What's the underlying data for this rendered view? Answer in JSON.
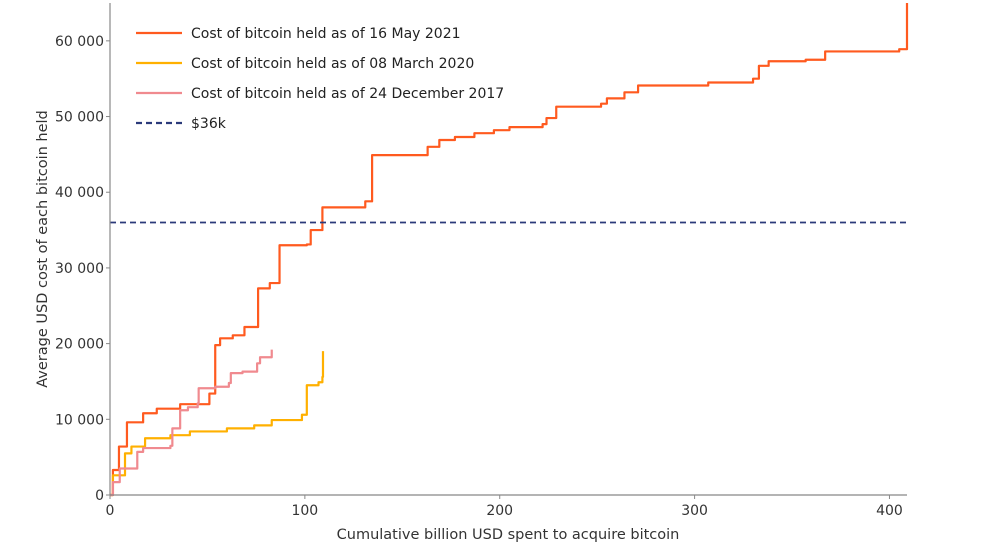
{
  "chart_data": {
    "type": "line",
    "title": "",
    "xlabel": "Cumulative billion USD spent to acquire bitcoin",
    "ylabel": "Average USD cost of each bitcoin held",
    "xlim": [
      0,
      409
    ],
    "ylim": [
      0,
      65000
    ],
    "xticks": [
      0,
      100,
      200,
      300,
      400
    ],
    "yticks": [
      0,
      10000,
      20000,
      30000,
      40000,
      50000,
      60000
    ],
    "ytick_labels": [
      "0",
      "10 000",
      "20 000",
      "30 000",
      "40 000",
      "50 000",
      "60 000"
    ],
    "xtick_labels": [
      "0",
      "100",
      "200",
      "300",
      "400"
    ],
    "grid": false,
    "legend_position": "top-left",
    "series": [
      {
        "name": "Cost of bitcoin held as of 16 May 2021",
        "color": "#ff5a1f",
        "style": "step",
        "points": [
          [
            0,
            0
          ],
          [
            1.5,
            3300
          ],
          [
            4.6,
            6400
          ],
          [
            8.7,
            9600
          ],
          [
            17,
            10800
          ],
          [
            24,
            11400
          ],
          [
            36,
            12000
          ],
          [
            51,
            13400
          ],
          [
            54,
            19800
          ],
          [
            56.5,
            20700
          ],
          [
            63,
            21100
          ],
          [
            69,
            22200
          ],
          [
            76,
            27300
          ],
          [
            82,
            28000
          ],
          [
            87,
            33000
          ],
          [
            101,
            33100
          ],
          [
            103,
            35000
          ],
          [
            109,
            38000
          ],
          [
            131,
            38800
          ],
          [
            134.5,
            44900
          ],
          [
            163,
            46000
          ],
          [
            169,
            46900
          ],
          [
            177,
            47300
          ],
          [
            187,
            47800
          ],
          [
            197,
            48200
          ],
          [
            205,
            48600
          ],
          [
            222,
            49000
          ],
          [
            224,
            49800
          ],
          [
            229,
            51300
          ],
          [
            252,
            51700
          ],
          [
            255,
            52400
          ],
          [
            264,
            53200
          ],
          [
            271,
            54100
          ],
          [
            307,
            54500
          ],
          [
            330,
            55000
          ],
          [
            333,
            56700
          ],
          [
            338,
            57300
          ],
          [
            357,
            57500
          ],
          [
            367,
            58600
          ],
          [
            405,
            58900
          ],
          [
            409,
            59000
          ],
          [
            409,
            65000
          ]
        ]
      },
      {
        "name": "Cost of bitcoin held as of 08 March 2020",
        "color": "#ffb000",
        "style": "step",
        "points": [
          [
            0,
            0
          ],
          [
            1.5,
            2600
          ],
          [
            7.7,
            5500
          ],
          [
            11,
            6400
          ],
          [
            18,
            7500
          ],
          [
            31,
            7900
          ],
          [
            41,
            8400
          ],
          [
            60,
            8800
          ],
          [
            74,
            9200
          ],
          [
            83,
            9900
          ],
          [
            98.5,
            10600
          ],
          [
            101,
            14500
          ],
          [
            107,
            14900
          ],
          [
            109,
            15600
          ],
          [
            109.3,
            19000
          ]
        ]
      },
      {
        "name": "Cost of bitcoin held as of 24 December 2017",
        "color": "#f08a8f",
        "style": "step",
        "points": [
          [
            0,
            0
          ],
          [
            1.5,
            1700
          ],
          [
            5,
            3500
          ],
          [
            11,
            3500
          ],
          [
            14,
            5700
          ],
          [
            17,
            6200
          ],
          [
            31,
            6500
          ],
          [
            32,
            8800
          ],
          [
            36,
            11200
          ],
          [
            40,
            11600
          ],
          [
            45,
            12100
          ],
          [
            45.5,
            14100
          ],
          [
            54,
            14300
          ],
          [
            61,
            14800
          ],
          [
            62,
            16100
          ],
          [
            68,
            16300
          ],
          [
            75.5,
            17400
          ],
          [
            77,
            18200
          ],
          [
            83,
            19200
          ]
        ]
      },
      {
        "name": "$36k",
        "color": "#2b3a7a",
        "style": "dashed-hline",
        "value": 36000
      }
    ]
  }
}
